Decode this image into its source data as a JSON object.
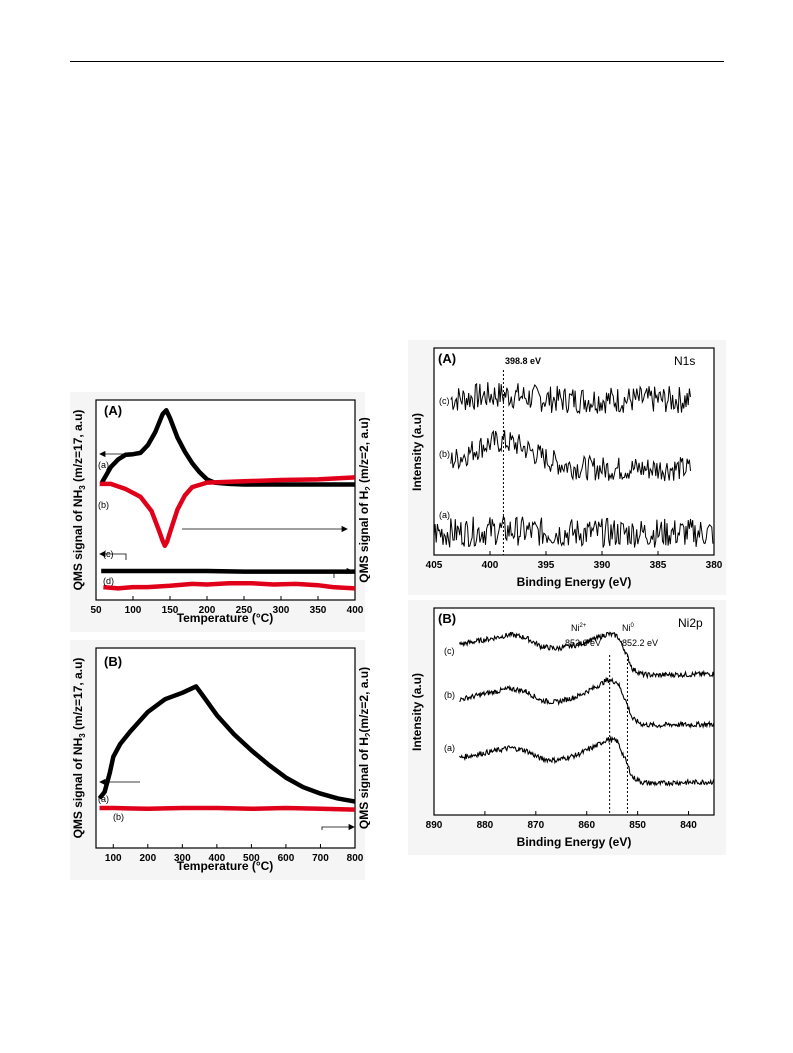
{
  "chart_data": [
    {
      "id": "tpd_A",
      "type": "line",
      "panel_label": "(A)",
      "xlabel": "Temperature (°C)",
      "ylabel_left": "QMS signal of NH3 (m/z=17, a.u)",
      "ylabel_right": "QMS signal of H2 (m/z=2, a.u)",
      "xlim": [
        50,
        400
      ],
      "xticks": [
        50,
        100,
        150,
        200,
        250,
        300,
        350,
        400
      ],
      "grid": false,
      "series": [
        {
          "name": "(a)",
          "color": "#000000",
          "x": [
            58,
            70,
            80,
            90,
            100,
            110,
            120,
            130,
            140,
            145,
            150,
            160,
            170,
            180,
            190,
            200,
            210,
            230,
            250,
            300,
            350,
            400
          ],
          "y": [
            0.92,
            1.16,
            1.28,
            1.35,
            1.36,
            1.38,
            1.5,
            1.7,
            1.98,
            2.04,
            1.92,
            1.62,
            1.4,
            1.22,
            1.08,
            0.97,
            0.92,
            0.9,
            0.89,
            0.89,
            0.89,
            0.89
          ]
        },
        {
          "name": "(b)",
          "color": "#e0001a",
          "x": [
            55,
            70,
            90,
            110,
            125,
            135,
            140,
            143,
            146,
            150,
            160,
            170,
            180,
            200,
            250,
            300,
            350,
            400
          ],
          "y": [
            0.9,
            0.9,
            0.82,
            0.7,
            0.48,
            0.18,
            0.02,
            -0.06,
            0.0,
            0.15,
            0.5,
            0.72,
            0.85,
            0.92,
            0.94,
            0.96,
            0.97,
            1.0
          ]
        },
        {
          "name": "(c)",
          "color": "#000000",
          "x": [
            57,
            100,
            150,
            200,
            250,
            300,
            350,
            400
          ],
          "y": [
            -0.45,
            -0.45,
            -0.45,
            -0.45,
            -0.46,
            -0.46,
            -0.46,
            -0.46
          ]
        },
        {
          "name": "(d)",
          "color": "#e0001a",
          "x": [
            60,
            80,
            100,
            120,
            150,
            180,
            200,
            230,
            260,
            290,
            320,
            350,
            370,
            400
          ],
          "y": [
            -0.7,
            -0.72,
            -0.7,
            -0.7,
            -0.68,
            -0.65,
            -0.66,
            -0.64,
            -0.64,
            -0.66,
            -0.65,
            -0.67,
            -0.7,
            -0.72
          ]
        }
      ]
    },
    {
      "id": "tpd_B",
      "type": "line",
      "panel_label": "(B)",
      "xlabel": "Temperature (°C)",
      "ylabel_left": "QMS signal of NH3 (m/z=17, a.u)",
      "ylabel_right": "QMS signal of H2(m/z=2, a.u)",
      "xlim": [
        50,
        800
      ],
      "xticks": [
        100,
        200,
        300,
        400,
        500,
        600,
        700,
        800
      ],
      "grid": false,
      "series": [
        {
          "name": "(a)",
          "color": "#000000",
          "x": [
            60,
            75,
            90,
            100,
            120,
            150,
            200,
            250,
            300,
            340,
            360,
            400,
            450,
            500,
            550,
            600,
            650,
            700,
            750,
            800
          ],
          "y": [
            0.06,
            0.1,
            0.22,
            0.32,
            0.4,
            0.48,
            0.6,
            0.68,
            0.72,
            0.76,
            0.7,
            0.58,
            0.46,
            0.36,
            0.27,
            0.19,
            0.13,
            0.09,
            0.06,
            0.04
          ]
        },
        {
          "name": "(b)",
          "color": "#e0001a",
          "x": [
            60,
            100,
            200,
            300,
            400,
            500,
            600,
            700,
            800
          ],
          "y": [
            0.0,
            0.0,
            -0.005,
            0.0,
            0.0,
            -0.005,
            0.0,
            -0.005,
            -0.01
          ]
        }
      ]
    },
    {
      "id": "xps_N1s",
      "type": "line",
      "panel_label": "(A)",
      "title": "N1s",
      "xlabel": "Binding Energy (eV)",
      "ylabel": "Intensity (a.u)",
      "xlim": [
        405,
        380
      ],
      "xticks": [
        405,
        400,
        395,
        390,
        385,
        380
      ],
      "annotation": "398.8 eV",
      "annotation_x": 398.8,
      "grid": false,
      "series": [
        {
          "name": "(c)",
          "color": "#000000",
          "x_start": 403.5,
          "x_end": 382,
          "baseline": 3.15,
          "bump_center": 399,
          "bump_height": 0.1,
          "bump_width": 3,
          "noise": 0.28
        },
        {
          "name": "(b)",
          "color": "#000000",
          "x_start": 403.5,
          "x_end": 382,
          "baseline": 1.75,
          "bump_center": 399,
          "bump_height": 0.55,
          "bump_width": 4,
          "noise": 0.25
        },
        {
          "name": "(a)",
          "color": "#000000",
          "x_start": 405,
          "x_end": 380,
          "baseline": 0.45,
          "bump_center": 399,
          "bump_height": 0.05,
          "bump_width": 3,
          "noise": 0.3
        }
      ]
    },
    {
      "id": "xps_Ni2p",
      "type": "line",
      "panel_label": "(B)",
      "title": "Ni2p",
      "xlabel": "Binding Energy (eV)",
      "ylabel": "Intensity (a.u)",
      "xlim": [
        890,
        835
      ],
      "xticks": [
        890,
        880,
        870,
        860,
        850,
        840
      ],
      "annotations": [
        {
          "text": "Ni2+",
          "value_text": "852.6 eV",
          "x": 855.5
        },
        {
          "text": "Ni0",
          "value_text": "852.2 eV",
          "x": 852
        }
      ],
      "grid": false,
      "series": [
        {
          "name": "(c)",
          "color": "#000000",
          "x": [
            885,
            880,
            875,
            872,
            869,
            866,
            862,
            858,
            856,
            854,
            852.5,
            851,
            849,
            846,
            843,
            840,
            835
          ],
          "y": [
            3.72,
            3.84,
            3.98,
            3.9,
            3.66,
            3.6,
            3.7,
            3.88,
            4.0,
            3.95,
            3.55,
            3.05,
            2.9,
            2.88,
            2.9,
            2.9,
            2.92
          ]
        },
        {
          "name": "(b)",
          "color": "#000000",
          "x": [
            885,
            880,
            875,
            872,
            869,
            866,
            862,
            858,
            856,
            854,
            852.5,
            851,
            849,
            846,
            843,
            840,
            835
          ],
          "y": [
            2.22,
            2.38,
            2.52,
            2.45,
            2.2,
            2.15,
            2.3,
            2.58,
            2.75,
            2.7,
            2.25,
            1.7,
            1.55,
            1.52,
            1.55,
            1.54,
            1.56
          ]
        },
        {
          "name": "(a)",
          "color": "#000000",
          "x": [
            885,
            880,
            875,
            872,
            869,
            866,
            862,
            858,
            856,
            854,
            852.5,
            851,
            849,
            846,
            843,
            840,
            835
          ],
          "y": [
            0.65,
            0.78,
            0.92,
            0.85,
            0.62,
            0.58,
            0.72,
            0.98,
            1.15,
            1.1,
            0.62,
            0.12,
            -0.02,
            -0.05,
            -0.02,
            -0.02,
            0.0
          ]
        }
      ]
    }
  ],
  "labels": {
    "tpd_A": {
      "panel": "(A)",
      "xlabel": "Temperature (",
      "xunit": "°C)",
      "ylabel_left_pre": "QMS signal of NH",
      "ylabel_left_sub": "3",
      "ylabel_left_post": " (m/z=17, a.u)",
      "ylabel_right_pre": "QMS signal of H",
      "ylabel_right_sub": "2",
      "ylabel_right_post": " (m/z=2, a.u)",
      "a": "(a)",
      "b": "(b)",
      "c": "(c)",
      "d": "(d)"
    },
    "tpd_B": {
      "panel": "(B)",
      "xlabel": "Temperature (",
      "xunit": "°C)",
      "ylabel_left_pre": "QMS signal of NH",
      "ylabel_left_sub": "3",
      "ylabel_left_post": " (m/z=17, a.u)",
      "ylabel_right_pre": "QMS signal of H",
      "ylabel_right_sub": "2",
      "ylabel_right_post": "(m/z=2, a.u)",
      "a": "(a)",
      "b": "(b)"
    },
    "xps_N1s": {
      "panel": "(A)",
      "title": "N1s",
      "xlabel": "Binding Energy (eV)",
      "ylabel": "Intensity (a.u)",
      "annotation": "398.8 eV",
      "a": "(a)",
      "b": "(b)",
      "c": "(c)"
    },
    "xps_Ni2p": {
      "panel": "(B)",
      "title": "Ni2p",
      "xlabel": "Binding Energy (eV)",
      "ylabel": "Intensity (a.u)",
      "ni2_base": "Ni",
      "ni2_sup": "2+",
      "ni2_val": "852.6 eV",
      "ni0_base": "Ni",
      "ni0_sup": "0",
      "ni0_val": "852.2 eV",
      "a": "(a)",
      "b": "(b)",
      "c": "(c)"
    }
  }
}
